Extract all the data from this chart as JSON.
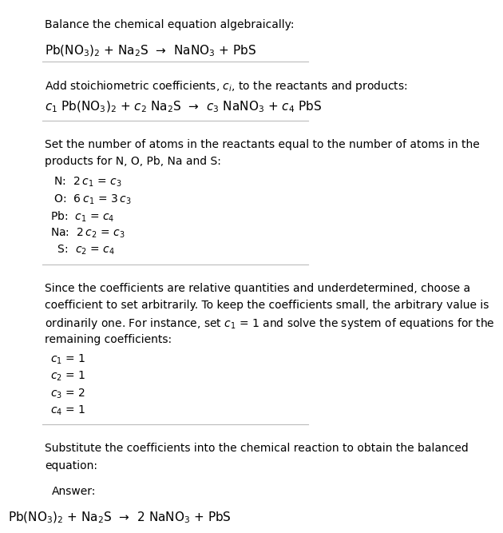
{
  "title_text": "Balance the chemical equation algebraically:",
  "equation_line": "Pb(NO$_3$)$_2$ + Na$_2$S  →  NaNO$_3$ + PbS",
  "section2_intro": "Add stoichiometric coefficients, $c_i$, to the reactants and products:",
  "section2_eq": "$c_1$ Pb(NO$_3$)$_2$ + $c_2$ Na$_2$S  →  $c_3$ NaNO$_3$ + $c_4$ PbS",
  "section3_intro_line1": "Set the number of atoms in the reactants equal to the number of atoms in the",
  "section3_intro_line2": "products for N, O, Pb, Na and S:",
  "eq_labels": [
    " N:",
    " O:",
    "Pb:",
    "Na:",
    "  S:"
  ],
  "eq_rhs": [
    "  2 $c_1$ = $c_3$",
    "  6 $c_1$ = 3 $c_3$",
    "  $c_1$ = $c_4$",
    "  2 $c_2$ = $c_3$",
    "  $c_2$ = $c_4$"
  ],
  "section4_text_line1": "Since the coefficients are relative quantities and underdetermined, choose a",
  "section4_text_line2": "coefficient to set arbitrarily. To keep the coefficients small, the arbitrary value is",
  "section4_text_line3": "ordinarily one. For instance, set $c_1$ = 1 and solve the system of equations for the",
  "section4_text_line4": "remaining coefficients:",
  "coeff_lines": [
    "$c_1$ = 1",
    "$c_2$ = 1",
    "$c_3$ = 2",
    "$c_4$ = 1"
  ],
  "section5_line1": "Substitute the coefficients into the chemical reaction to obtain the balanced",
  "section5_line2": "equation:",
  "answer_label": "Answer:",
  "answer_eq": "Pb(NO$_3$)$_2$ + Na$_2$S  →  2 NaNO$_3$ + PbS",
  "bg_color": "#ffffff",
  "text_color": "#000000",
  "box_bg": "#e8f4f8",
  "box_border": "#a0c8d8",
  "separator_color": "#cccccc",
  "font_size": 10,
  "eq_font_size": 11
}
